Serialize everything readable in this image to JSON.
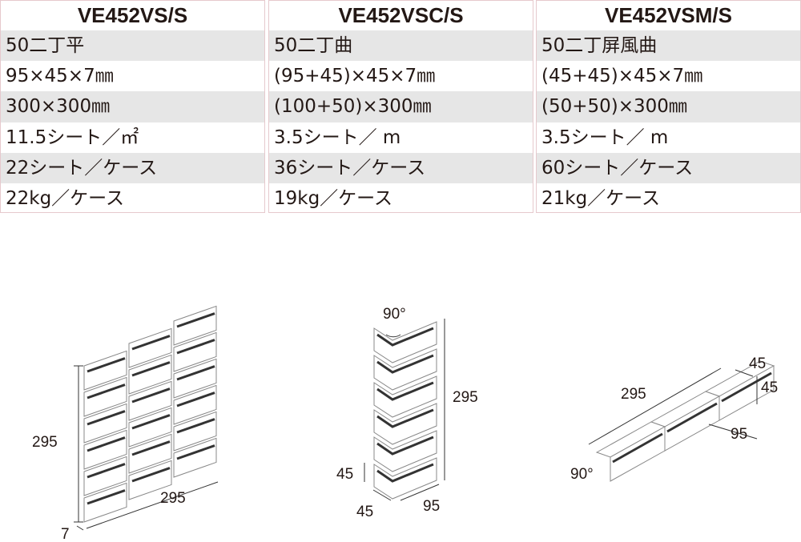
{
  "products": [
    {
      "code": "VE452VS/S",
      "specs": [
        "50二丁平",
        "95×45×7㎜",
        "300×300㎜",
        "11.5シート／㎡",
        "22シート／ケース",
        "22kg／ケース"
      ]
    },
    {
      "code": "VE452VSC/S",
      "specs": [
        "50二丁曲",
        "(95+45)×45×7㎜",
        "(100+50)×300㎜",
        "3.5シート／ m",
        "36シート／ケース",
        "19kg／ケース"
      ]
    },
    {
      "code": "VE452VSM/S",
      "specs": [
        "50二丁屏風曲",
        "(45+45)×45×7㎜",
        "(50+50)×300㎜",
        "3.5シート／ m",
        "60シート／ケース",
        "21kg／ケース"
      ]
    }
  ],
  "diagrams": [
    {
      "labels": [
        "295",
        "295",
        "7"
      ]
    },
    {
      "labels": [
        "90°",
        "295",
        "45",
        "45",
        "95"
      ]
    },
    {
      "labels": [
        "45",
        "45",
        "295",
        "95",
        "90°"
      ]
    }
  ]
}
